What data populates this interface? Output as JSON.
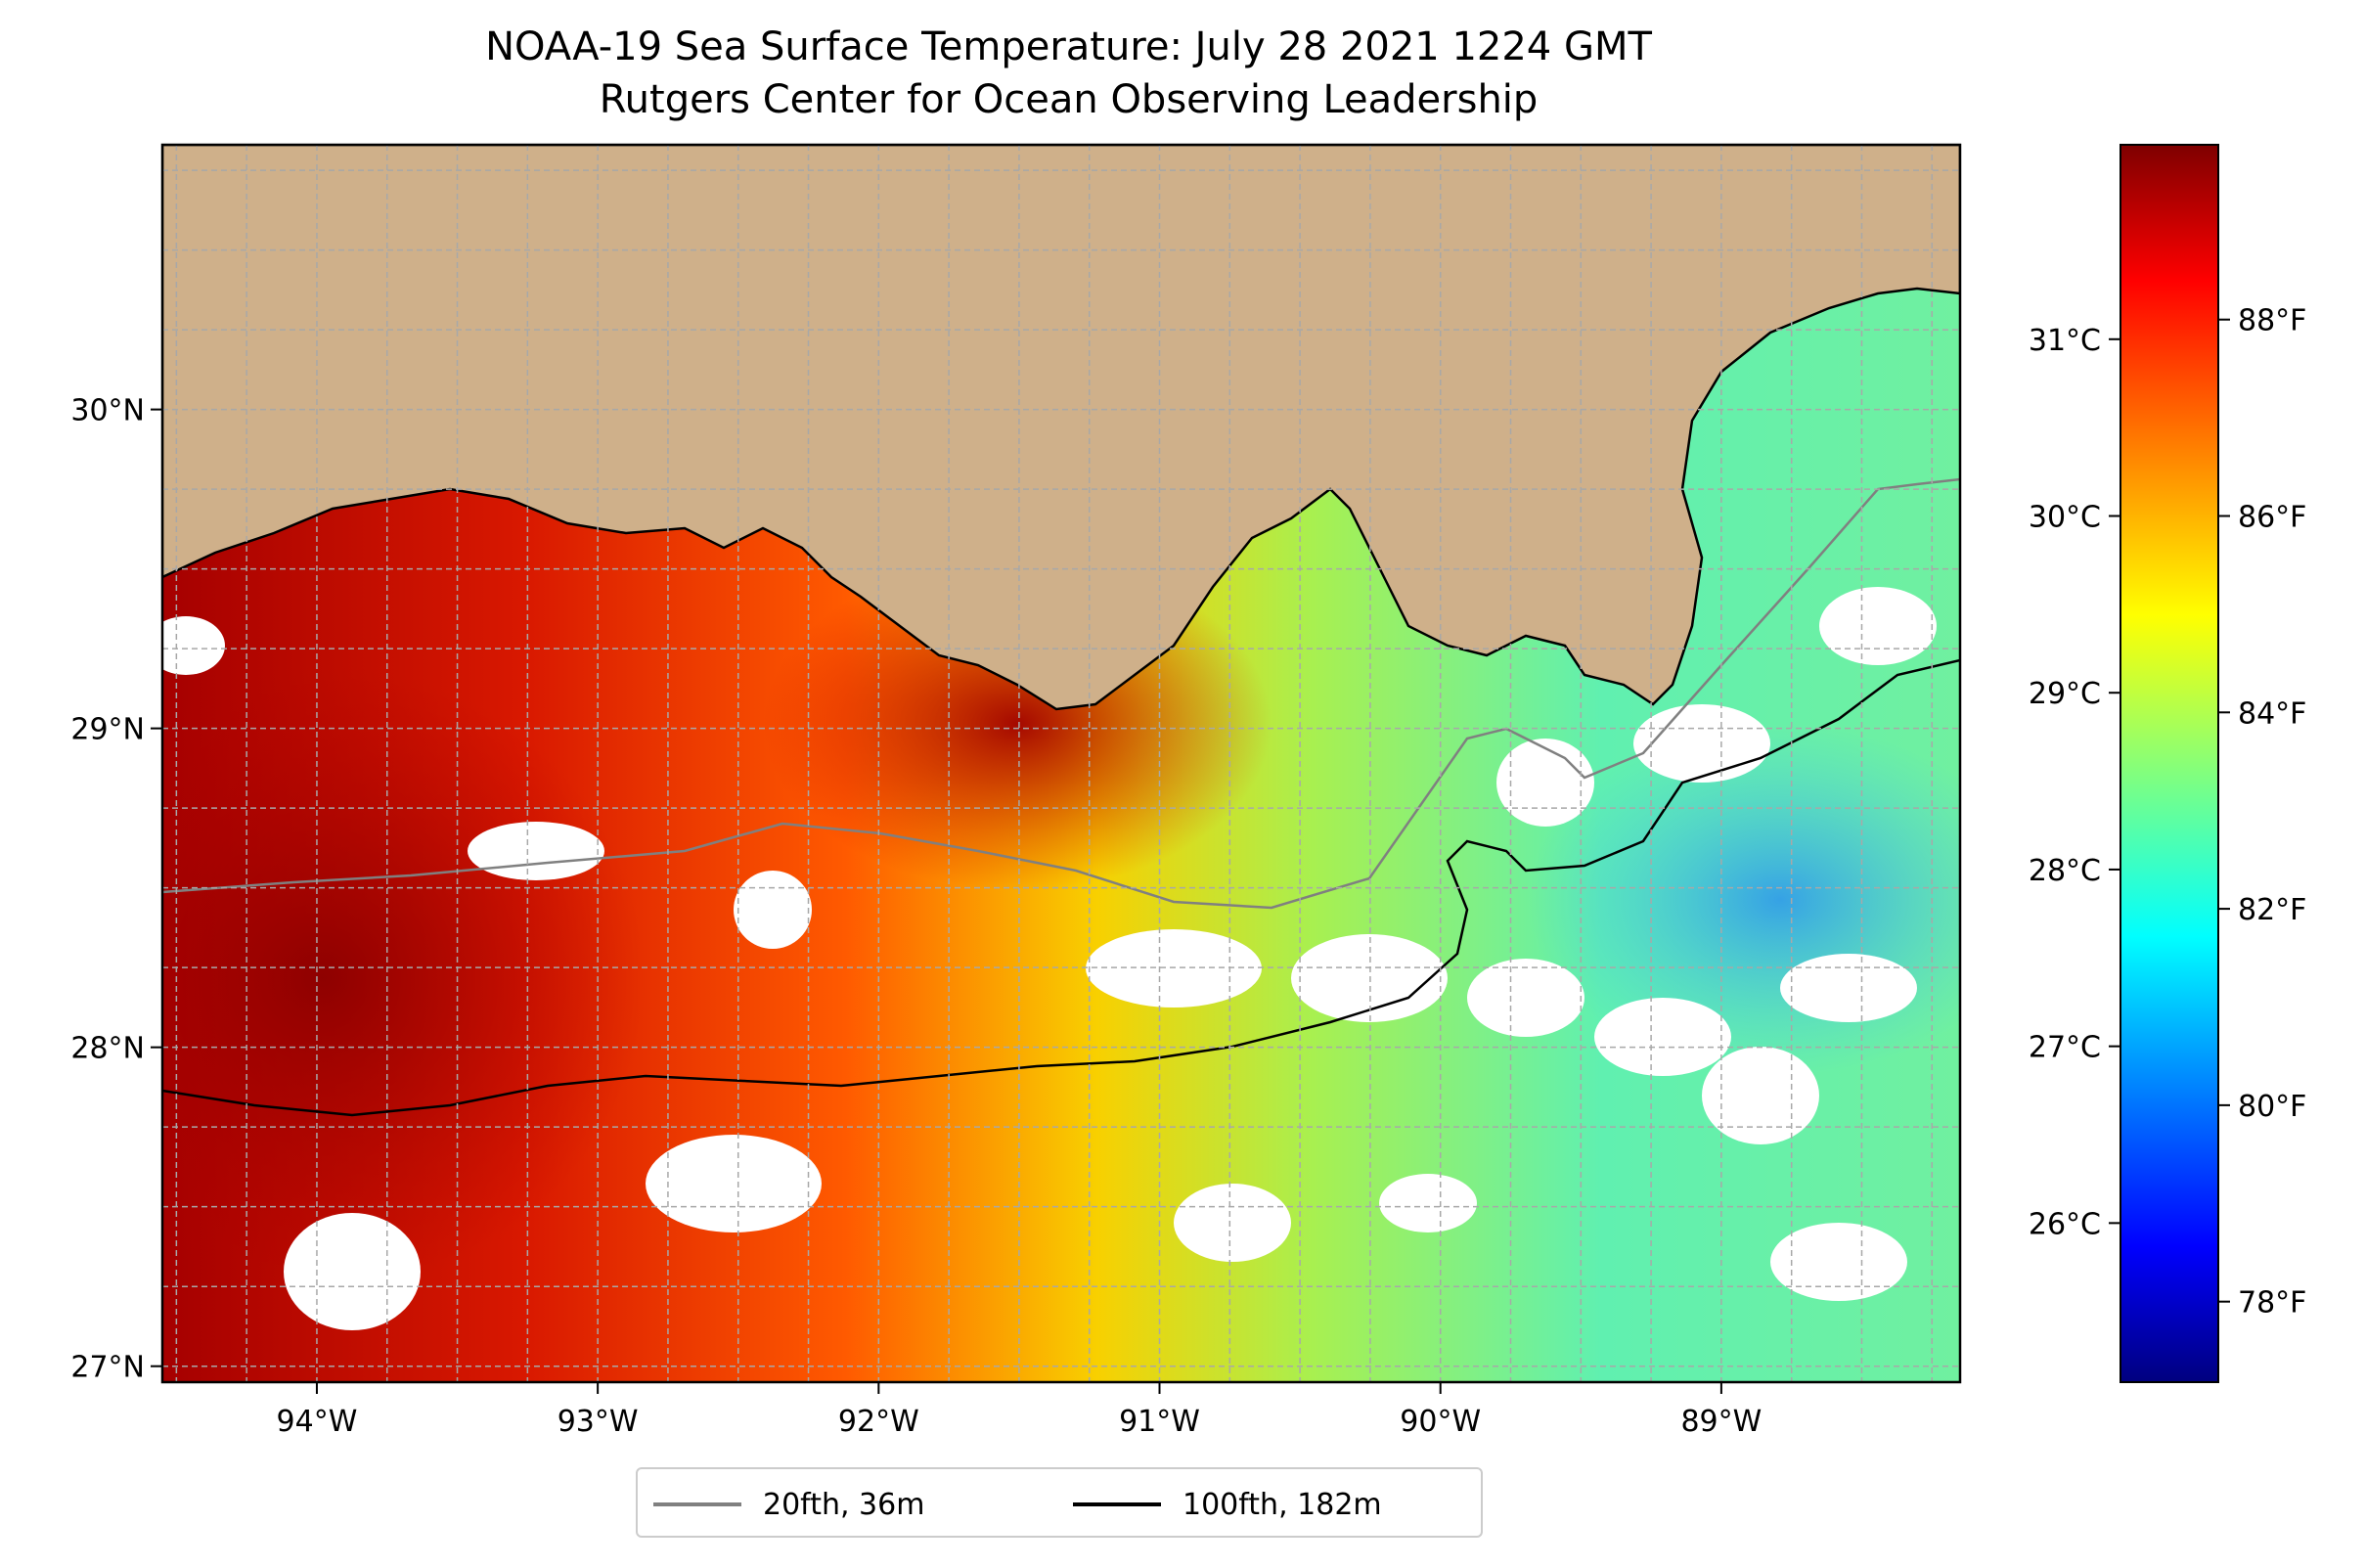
{
  "title": {
    "line1": "NOAA-19 Sea Surface Temperature: July 28 2021 1224 GMT",
    "line2": "Rutgers Center for Ocean Observing Leadership"
  },
  "map": {
    "lon_range": [
      -94.55,
      -88.15
    ],
    "lat_range": [
      26.95,
      30.83
    ],
    "lon_ticks": [
      {
        "value": -94,
        "label": "94°W"
      },
      {
        "value": -93,
        "label": "93°W"
      },
      {
        "value": -92,
        "label": "92°W"
      },
      {
        "value": -91,
        "label": "91°W"
      },
      {
        "value": -90,
        "label": "90°W"
      },
      {
        "value": -89,
        "label": "89°W"
      }
    ],
    "lat_ticks": [
      {
        "value": 27,
        "label": "27°N"
      },
      {
        "value": 28,
        "label": "28°N"
      },
      {
        "value": 29,
        "label": "29°N"
      },
      {
        "value": 30,
        "label": "30°N"
      }
    ],
    "grid": true,
    "land_color": "#cfb08a",
    "contours": [
      {
        "name": "20fth, 36m",
        "color": "#808080"
      },
      {
        "name": "100fth, 182m",
        "color": "#000000"
      }
    ]
  },
  "colorbar": {
    "colormap": "jet",
    "range_c": [
      25.1,
      32.1
    ],
    "celsius_ticks": [
      {
        "value": 26,
        "label": "26°C"
      },
      {
        "value": 27,
        "label": "27°C"
      },
      {
        "value": 28,
        "label": "28°C"
      },
      {
        "value": 29,
        "label": "29°C"
      },
      {
        "value": 30,
        "label": "30°C"
      },
      {
        "value": 31,
        "label": "31°C"
      }
    ],
    "fahrenheit_ticks": [
      {
        "value": 78,
        "label": "78°F"
      },
      {
        "value": 80,
        "label": "80°F"
      },
      {
        "value": 82,
        "label": "82°F"
      },
      {
        "value": 84,
        "label": "84°F"
      },
      {
        "value": 86,
        "label": "86°F"
      },
      {
        "value": 88,
        "label": "88°F"
      }
    ]
  },
  "legend": {
    "items": [
      {
        "label": "20fth, 36m",
        "color": "#808080"
      },
      {
        "label": "100fth, 182m",
        "color": "#000000"
      }
    ],
    "placement": "bottom-center"
  }
}
